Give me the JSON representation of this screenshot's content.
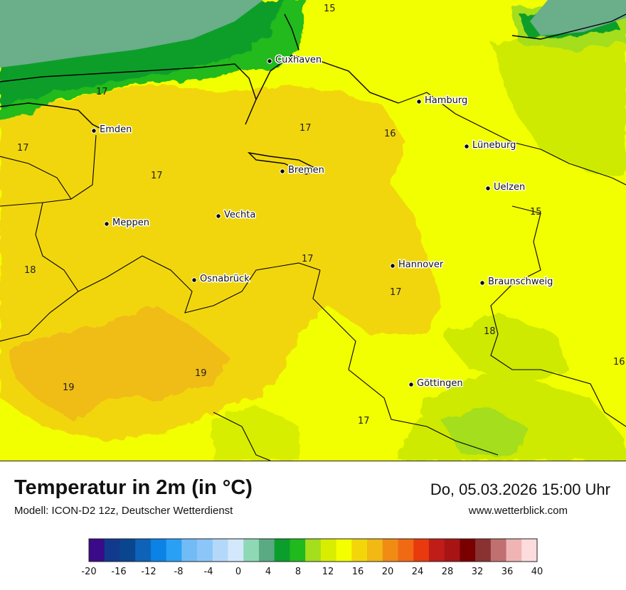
{
  "map": {
    "cities": [
      {
        "name": "Cuxhaven"
      },
      {
        "name": "Hamburg"
      },
      {
        "name": "Emden"
      },
      {
        "name": "Lüneburg"
      },
      {
        "name": "Bremen"
      },
      {
        "name": "Uelzen"
      },
      {
        "name": "Meppen"
      },
      {
        "name": "Vechta"
      },
      {
        "name": "Hannover"
      },
      {
        "name": "Osnabrück"
      },
      {
        "name": "Braunschweig"
      },
      {
        "name": "Göttingen"
      }
    ],
    "iso_labels": [
      "15",
      "17",
      "17",
      "16",
      "17",
      "17",
      "17",
      "15",
      "18",
      "17",
      "17",
      "18",
      "19",
      "19",
      "16",
      "17"
    ],
    "colors": {
      "sea": "#6aae8a",
      "green_dark": "#0a9e2c",
      "green": "#1fba1c",
      "green_light": "#8fd62a",
      "lime": "#cdea00",
      "yellow": "#f2ff00",
      "gold": "#f2d60a",
      "orange": "#f0bc14"
    }
  },
  "footer": {
    "title": "Temperatur in 2m (in °C)",
    "model": "Modell: ICON-D2 12z, Deutscher Wetterdienst",
    "datetime": "Do, 05.03.2026 15:00 Uhr",
    "website": "www.wetterblick.com"
  },
  "colorbar": {
    "ticks": [
      "-20",
      "-16",
      "-12",
      "-8",
      "-4",
      "0",
      "4",
      "8",
      "12",
      "16",
      "20",
      "24",
      "28",
      "32",
      "36",
      "40"
    ],
    "colors": [
      "#3b0a88",
      "#123a8c",
      "#0a4690",
      "#0e62b8",
      "#0a82e6",
      "#2aa0f4",
      "#72bcf6",
      "#8cc6f8",
      "#b4d8fa",
      "#d4e8fc",
      "#8ed8b6",
      "#5aaa84",
      "#0a9e2c",
      "#20ba1c",
      "#a4de1c",
      "#d8ee00",
      "#f4ff00",
      "#f2d60a",
      "#f2b814",
      "#f08c14",
      "#f06a14",
      "#e83a0c",
      "#c01c18",
      "#a81414",
      "#7a0000",
      "#8a3232",
      "#c07070",
      "#f0b4b4",
      "#fcdcdc"
    ]
  }
}
